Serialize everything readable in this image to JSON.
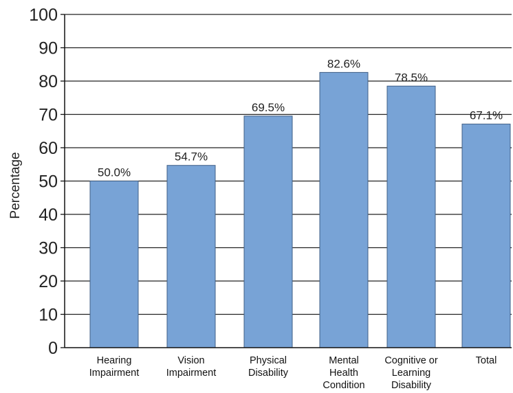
{
  "chart_data": {
    "type": "bar",
    "categories": [
      [
        "Hearing",
        "Impairment"
      ],
      [
        "Vision",
        "Impairment"
      ],
      [
        "Physical",
        "Disability"
      ],
      [
        "Mental",
        "Health",
        "Condition"
      ],
      [
        "Cognitive or",
        "Learning",
        "Disability"
      ],
      [
        "Total"
      ]
    ],
    "values": [
      50.0,
      54.7,
      69.5,
      82.6,
      78.5,
      67.1
    ],
    "value_labels": [
      "50.0%",
      "54.7%",
      "69.5%",
      "82.6%",
      "78.5%",
      "67.1%"
    ],
    "ylabel": "Percentage",
    "ylim": [
      0,
      100
    ],
    "yticks": [
      0,
      10,
      20,
      30,
      40,
      50,
      60,
      70,
      80,
      90,
      100
    ],
    "grid": true,
    "bar_color": "#78a3d6",
    "bar_edge_color": "#3f5f86"
  }
}
